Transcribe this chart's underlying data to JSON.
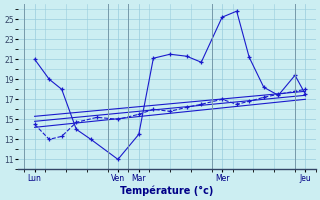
{
  "background_color": "#cceef2",
  "grid_color": "#99ccdd",
  "line_color": "#1a1acc",
  "title": "Température (°c)",
  "yticks": [
    11,
    13,
    15,
    17,
    19,
    21,
    23,
    25
  ],
  "ylim": [
    10.0,
    26.5
  ],
  "xlim": [
    -0.3,
    14.0
  ],
  "day_labels": [
    "Lun",
    "Ven",
    "Mar",
    "Mer",
    "Jeu"
  ],
  "day_positions": [
    0.5,
    4.5,
    5.5,
    9.5,
    13.5
  ],
  "vline_positions": [
    0,
    4,
    5,
    9,
    13
  ],
  "series_big": {
    "x": [
      0.5,
      1.2,
      1.8,
      2.5,
      3.2,
      4.5,
      5.5,
      6.2,
      7.0,
      7.8,
      8.5,
      9.5,
      10.2,
      10.8,
      11.5,
      12.2,
      13.0,
      13.5
    ],
    "y": [
      21,
      19,
      18,
      14,
      13,
      11,
      13.5,
      21.1,
      21.5,
      21.3,
      20.7,
      25.2,
      25.8,
      21.2,
      18.2,
      17.4,
      19.4,
      17.5
    ]
  },
  "series_dashed": {
    "x": [
      0.5,
      1.2,
      1.8,
      2.5,
      3.5,
      4.5,
      5.5,
      6.2,
      7.0,
      7.8,
      8.5,
      9.5,
      10.2,
      10.8,
      11.5,
      12.2,
      13.0,
      13.5
    ],
    "y": [
      14.5,
      13.0,
      13.3,
      14.7,
      15.2,
      15.0,
      15.5,
      16.0,
      15.8,
      16.2,
      16.5,
      17.0,
      16.5,
      16.8,
      17.2,
      17.5,
      17.8,
      18.0
    ]
  },
  "trend1": {
    "x": [
      0.5,
      13.5
    ],
    "y": [
      14.2,
      17.0
    ]
  },
  "trend2": {
    "x": [
      0.5,
      13.5
    ],
    "y": [
      14.8,
      17.4
    ]
  },
  "trend3": {
    "x": [
      0.5,
      13.5
    ],
    "y": [
      15.3,
      17.8
    ]
  }
}
